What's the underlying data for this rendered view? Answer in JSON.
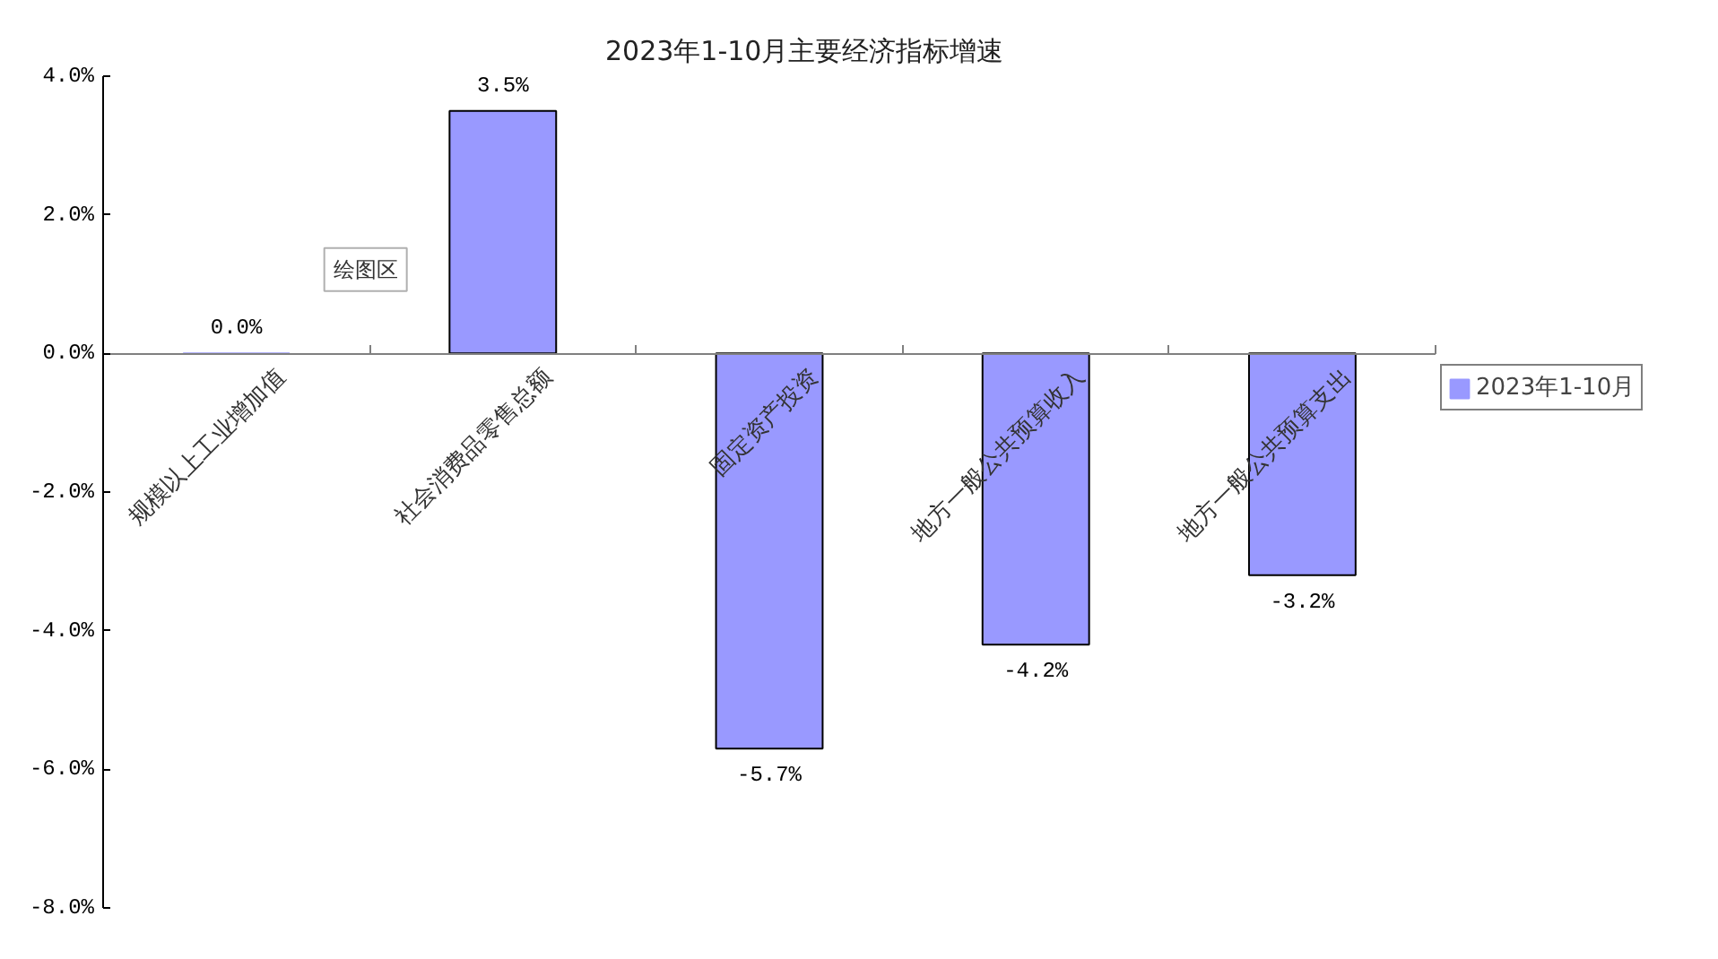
{
  "chart_data": {
    "type": "bar",
    "title": "2023年1-10月主要经济指标增速",
    "categories": [
      "规模以上工业增加值",
      "社会消费品零售总额",
      "固定资产投资",
      "地方一般公共预算收入",
      "地方一般公共预算支出"
    ],
    "series": [
      {
        "name": "2023年1-10月",
        "color": "#9999ff",
        "values": [
          0.0,
          3.5,
          -5.7,
          -4.2,
          -3.2
        ],
        "value_labels": [
          "0.0%",
          "3.5%",
          "-5.7%",
          "-4.2%",
          "-3.2%"
        ]
      }
    ],
    "ylim": [
      -8,
      4
    ],
    "yticks": [
      {
        "value": -8,
        "label": "-8.0%"
      },
      {
        "value": -6,
        "label": "-6.0%"
      },
      {
        "value": -4,
        "label": "-4.0%"
      },
      {
        "value": -2,
        "label": "-2.0%"
      },
      {
        "value": 0,
        "label": "0.0%"
      },
      {
        "value": 2,
        "label": "2.0%"
      },
      {
        "value": 4,
        "label": "4.0%"
      }
    ],
    "grid": false,
    "legend": "right",
    "annotations": [
      "绘图区"
    ]
  }
}
